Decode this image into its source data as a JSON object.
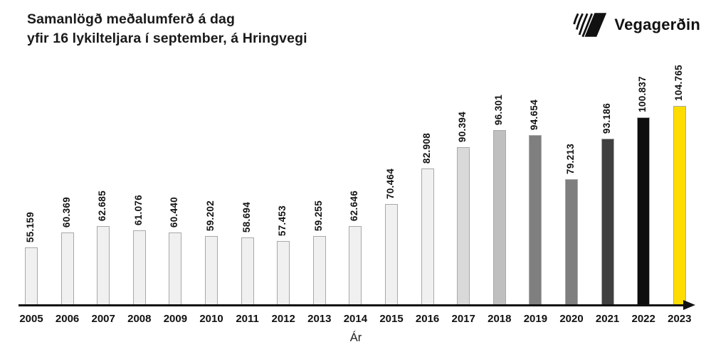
{
  "header": {
    "title_line1": "Samanlögð meðalumferð á dag",
    "title_line2": "yfir 16 lykilteljara í september, á Hringvegi",
    "logo_text": "Vegagerðin"
  },
  "chart_data": {
    "type": "bar",
    "title": "Samanlögð meðalumferð á dag yfir 16 lykilteljara í september, á Hringvegi",
    "xlabel": "Ár",
    "ylabel": "",
    "grid": false,
    "legend": false,
    "ylim": [
      35000,
      105000
    ],
    "categories": [
      "2005",
      "2006",
      "2007",
      "2008",
      "2009",
      "2010",
      "2011",
      "2012",
      "2013",
      "2014",
      "2015",
      "2016",
      "2017",
      "2018",
      "2019",
      "2020",
      "2021",
      "2022",
      "2023"
    ],
    "values": [
      55159,
      60369,
      62685,
      61076,
      60440,
      59202,
      58694,
      57453,
      59255,
      62646,
      70464,
      82908,
      90394,
      96301,
      94654,
      79213,
      93186,
      100837,
      104765
    ],
    "value_labels": [
      "55.159",
      "60.369",
      "62.685",
      "61.076",
      "60.440",
      "59.202",
      "58.694",
      "57.453",
      "59.255",
      "62.646",
      "70.464",
      "82.908",
      "90.394",
      "96.301",
      "94.654",
      "79.213",
      "93.186",
      "100.837",
      "104.765"
    ],
    "bar_colors": [
      "#f0f0f0",
      "#f0f0f0",
      "#f0f0f0",
      "#f0f0f0",
      "#f0f0f0",
      "#f0f0f0",
      "#f0f0f0",
      "#f0f0f0",
      "#f0f0f0",
      "#f0f0f0",
      "#f0f0f0",
      "#f0f0f0",
      "#d9d9d9",
      "#bfbfbf",
      "#7f7f7f",
      "#7f7f7f",
      "#404040",
      "#0e0e0e",
      "#ffdc00"
    ],
    "bar_border_color": "#a8a8a8",
    "axis_color": "#111111"
  }
}
